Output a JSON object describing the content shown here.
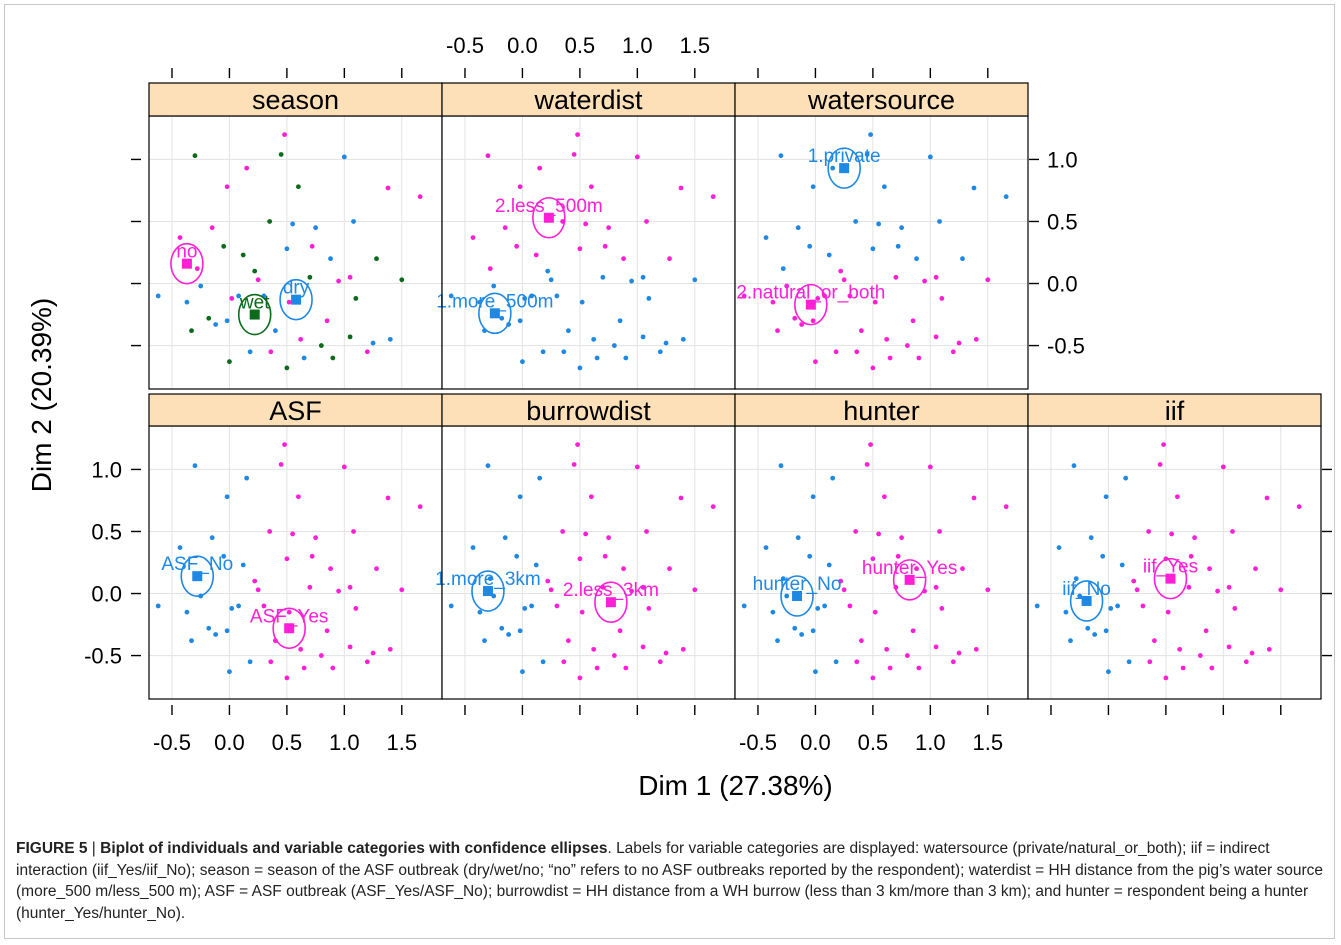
{
  "chart_data": {
    "type": "scatter",
    "xlabel": "Dim 1 (27.38%)",
    "ylabel": "Dim 2 (20.39%)",
    "xlim": [
      -0.7,
      1.85
    ],
    "ylim": [
      -0.85,
      1.35
    ],
    "xticks": [
      -0.5,
      0.0,
      0.5,
      1.0,
      1.5
    ],
    "xtick_labels": [
      "-0.5",
      "0.0",
      "0.5",
      "1.0",
      "1.5"
    ],
    "yticks": [
      -0.5,
      0.0,
      0.5,
      1.0
    ],
    "ytick_labels": [
      "-0.5",
      "0.0",
      "0.5",
      "1.0"
    ],
    "grid": true,
    "colors": {
      "blue": "#1e88e5",
      "magenta": "#ff1fd6",
      "green": "#0b6b1a",
      "strip": "#fde0b8",
      "grid": "#e3e3e3"
    },
    "individuals": [
      [
        -0.62,
        -0.1
      ],
      [
        -0.3,
        1.03
      ],
      [
        -0.43,
        0.37
      ],
      [
        -0.37,
        -0.15
      ],
      [
        -0.33,
        -0.38
      ],
      [
        -0.28,
        0.12
      ],
      [
        -0.25,
        -0.02
      ],
      [
        -0.18,
        -0.28
      ],
      [
        -0.15,
        0.45
      ],
      [
        -0.12,
        -0.33
      ],
      [
        -0.05,
        0.3
      ],
      [
        -0.02,
        0.78
      ],
      [
        -0.02,
        -0.3
      ],
      [
        0.0,
        -0.63
      ],
      [
        0.02,
        -0.12
      ],
      [
        0.08,
        -0.1
      ],
      [
        0.12,
        0.23
      ],
      [
        0.15,
        0.93
      ],
      [
        0.18,
        -0.55
      ],
      [
        0.22,
        0.1
      ],
      [
        0.25,
        0.03
      ],
      [
        0.3,
        -0.1
      ],
      [
        0.35,
        0.5
      ],
      [
        0.36,
        -0.55
      ],
      [
        0.4,
        -0.38
      ],
      [
        0.45,
        1.04
      ],
      [
        0.48,
        1.2
      ],
      [
        0.5,
        0.28
      ],
      [
        0.5,
        -0.68
      ],
      [
        0.52,
        -0.15
      ],
      [
        0.55,
        0.48
      ],
      [
        0.6,
        0.78
      ],
      [
        0.62,
        -0.45
      ],
      [
        0.65,
        -0.6
      ],
      [
        0.7,
        0.05
      ],
      [
        0.72,
        0.3
      ],
      [
        0.75,
        0.45
      ],
      [
        0.8,
        -0.5
      ],
      [
        0.85,
        -0.3
      ],
      [
        0.88,
        0.2
      ],
      [
        0.9,
        -0.6
      ],
      [
        0.95,
        0.02
      ],
      [
        1.0,
        1.02
      ],
      [
        1.05,
        -0.43
      ],
      [
        1.05,
        0.05
      ],
      [
        1.08,
        0.5
      ],
      [
        1.1,
        -0.12
      ],
      [
        1.2,
        -0.55
      ],
      [
        1.25,
        -0.48
      ],
      [
        1.28,
        0.2
      ],
      [
        1.38,
        0.77
      ],
      [
        1.4,
        -0.45
      ],
      [
        1.5,
        0.03
      ],
      [
        1.66,
        0.7
      ]
    ],
    "panels": [
      {
        "title": "season",
        "labels": [
          {
            "text": "no",
            "x": -0.37,
            "y": 0.16,
            "color": "magenta"
          },
          {
            "text": "wet",
            "x": 0.22,
            "y": -0.25,
            "color": "green"
          },
          {
            "text": "dry",
            "x": 0.58,
            "y": -0.13,
            "color": "blue"
          }
        ]
      },
      {
        "title": "waterdist",
        "labels": [
          {
            "text": "2.less_500m",
            "x": 0.23,
            "y": 0.53,
            "color": "magenta"
          },
          {
            "text": "1.more_500m",
            "x": -0.24,
            "y": -0.24,
            "color": "blue"
          }
        ]
      },
      {
        "title": "watersource",
        "labels": [
          {
            "text": "1.private",
            "x": 0.25,
            "y": 0.93,
            "color": "blue"
          },
          {
            "text": "2.natural_or_both",
            "x": -0.04,
            "y": -0.17,
            "color": "magenta"
          }
        ]
      },
      {
        "title": "ASF",
        "labels": [
          {
            "text": "ASF_No",
            "x": -0.28,
            "y": 0.14,
            "color": "blue"
          },
          {
            "text": "ASF_Yes",
            "x": 0.52,
            "y": -0.28,
            "color": "magenta"
          }
        ]
      },
      {
        "title": "burrowdist",
        "labels": [
          {
            "text": "1.more_3km",
            "x": -0.3,
            "y": 0.02,
            "color": "blue"
          },
          {
            "text": "2.less_3km",
            "x": 0.77,
            "y": -0.07,
            "color": "magenta"
          }
        ]
      },
      {
        "title": "hunter",
        "labels": [
          {
            "text": "hunter_No",
            "x": -0.16,
            "y": -0.02,
            "color": "blue"
          },
          {
            "text": "hunter_Yes",
            "x": 0.82,
            "y": 0.11,
            "color": "magenta"
          }
        ]
      },
      {
        "title": "iif",
        "labels": [
          {
            "text": "iif_No",
            "x": -0.19,
            "y": -0.06,
            "color": "blue"
          },
          {
            "text": "iif_Yes",
            "x": 0.54,
            "y": 0.12,
            "color": "magenta"
          }
        ]
      }
    ]
  },
  "caption": {
    "figure_label": "FIGURE 5",
    "separator": " | ",
    "bold_title": "Biplot of individuals and variable categories with confidence ellipses",
    "text": ". Labels for variable categories are displayed: watersource (private/natural_or_both); iif = indirect interaction (iif_Yes/iif_No); season = season of the ASF outbreak (dry/wet/no; “no” refers to no ASF outbreaks reported by the respondent); waterdist = HH distance from the pig’s water source (more_500 m/less_500 m); ASF = ASF outbreak (ASF_Yes/ASF_No); burrowdist = HH distance from a WH burrow (less than 3 km/more than 3 km); and hunter = respondent being a hunter (hunter_Yes/hunter_No)."
  }
}
